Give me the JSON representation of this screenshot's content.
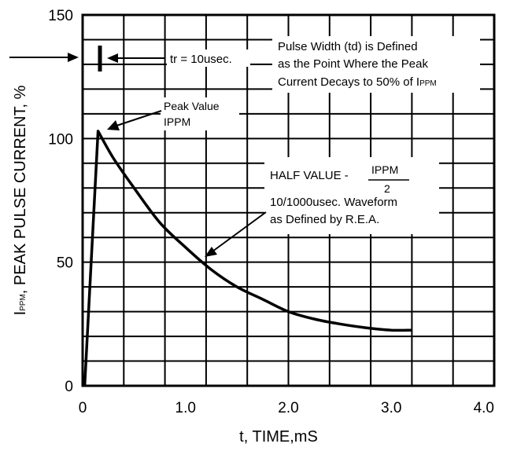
{
  "chart_data": {
    "type": "line",
    "title": "",
    "xlabel": "t, TIME,mS",
    "ylabel_prefix": "I",
    "ylabel_sub": "PPM",
    "ylabel_rest": ", PEAK PULSE CURRENT, %",
    "xlim": [
      0,
      4.0
    ],
    "ylim": [
      0,
      150
    ],
    "x_ticks": [
      "0",
      "1.0",
      "2.0",
      "3.0",
      "4.0"
    ],
    "y_ticks": [
      "0",
      "50",
      "100",
      "150"
    ],
    "grid": true,
    "series": [
      {
        "x": [
          0.02,
          0.15,
          0.3,
          0.5,
          0.75,
          1.0,
          1.25,
          1.5,
          1.75,
          2.0,
          2.25,
          2.5,
          2.75,
          3.0,
          3.2
        ],
        "values": [
          0,
          103,
          92,
          80,
          66,
          56,
          47,
          40,
          35,
          30,
          27,
          25,
          23.5,
          22.5,
          22.5
        ]
      }
    ],
    "annotations": {
      "tr": "tr = 10usec.",
      "pulse_width_1": "Pulse Width (td) is Defined",
      "pulse_width_2": "as the Point Where the Peak",
      "pulse_width_3_pre": "Current Decays to 50% of I",
      "pulse_width_3_sub": "PPM",
      "peak_1": "Peak Value",
      "peak_2": "IPPM",
      "half_pre": "HALF VALUE -",
      "half_num": "IPPM",
      "half_den": "2",
      "waveform_1": "10/1000usec. Waveform",
      "waveform_2": "as Defined by R.E.A."
    }
  }
}
